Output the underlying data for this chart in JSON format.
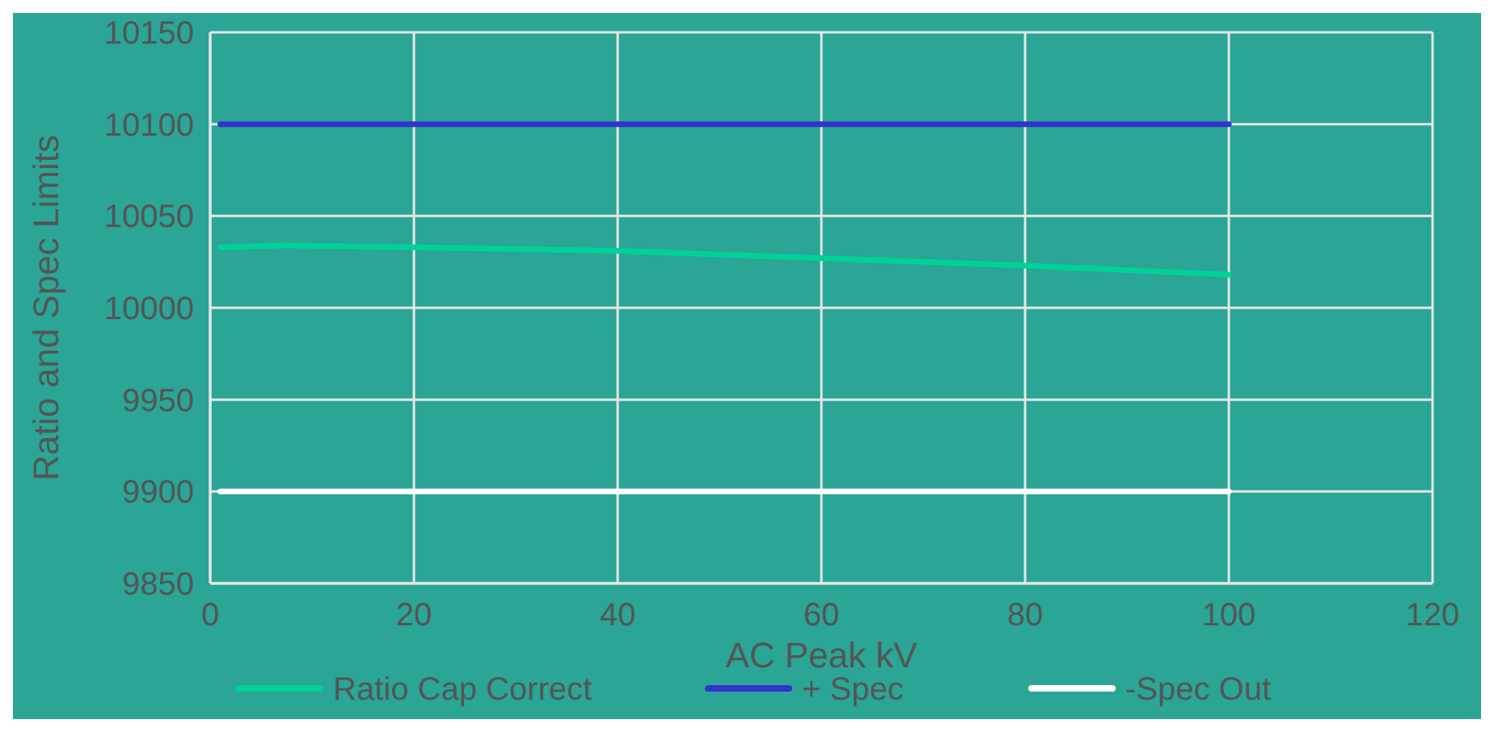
{
  "chart_data": {
    "type": "line",
    "xlabel": "AC Peak kV",
    "ylabel": "Ratio and Spec Limits",
    "xlim": [
      0,
      120
    ],
    "xticks": [
      0,
      20,
      40,
      60,
      80,
      100,
      120
    ],
    "ylim": [
      9850,
      10150
    ],
    "yticks": [
      9850,
      9900,
      9950,
      10000,
      10050,
      10100,
      10150
    ],
    "grid": true,
    "legend": "bottom",
    "marker": "none",
    "line_style": "solid",
    "series": [
      {
        "name": "Ratio Cap Correct",
        "color": "#00d199",
        "x": [
          1,
          7,
          20,
          40,
          60,
          80,
          100
        ],
        "values": [
          10033,
          10034,
          10033,
          10031,
          10027,
          10023,
          10018
        ]
      },
      {
        "name": "+ Spec",
        "color": "#3333cc",
        "x": [
          1,
          100
        ],
        "values": [
          10100,
          10100
        ]
      },
      {
        "name": "-Spec Out",
        "color": "#ffffff",
        "x": [
          1,
          100
        ],
        "values": [
          9900,
          9900
        ]
      }
    ]
  }
}
